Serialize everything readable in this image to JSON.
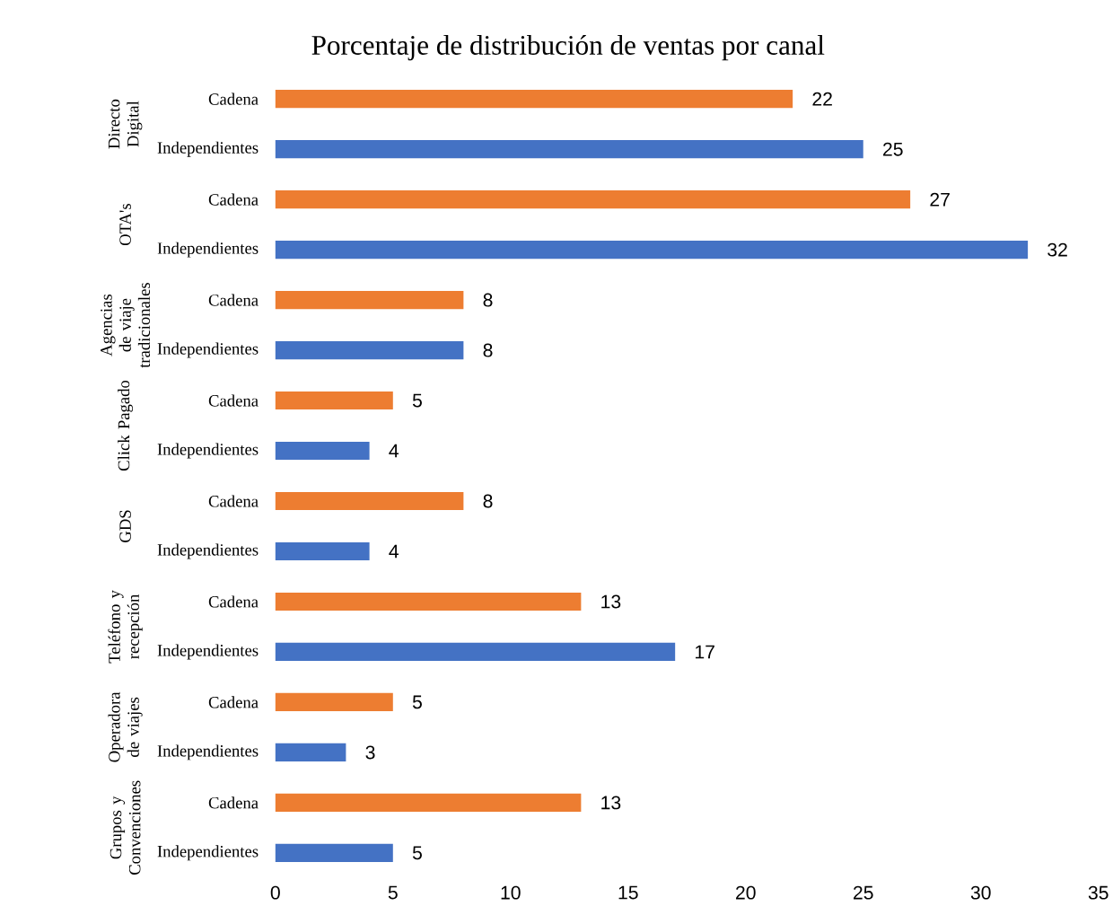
{
  "chart_data": {
    "type": "bar",
    "orientation": "horizontal",
    "title": "Porcentaje de distribución de ventas por canal",
    "categories": [
      "Cadena",
      "Independientes",
      "Cadena",
      "Independientes",
      "Cadena",
      "Independientes",
      "Cadena",
      "Independientes",
      "Cadena",
      "Independientes",
      "Cadena",
      "Independientes",
      "Cadena",
      "Independientes",
      "Cadena",
      "Independientes"
    ],
    "values": [
      22,
      25,
      27,
      32,
      8,
      8,
      5,
      4,
      8,
      4,
      13,
      17,
      5,
      3,
      13,
      5
    ],
    "colors": [
      "#ed7d31",
      "#4472c4",
      "#ed7d31",
      "#4472c4",
      "#ed7d31",
      "#4472c4",
      "#ed7d31",
      "#4472c4",
      "#ed7d31",
      "#4472c4",
      "#ed7d31",
      "#4472c4",
      "#ed7d31",
      "#4472c4",
      "#ed7d31",
      "#4472c4"
    ],
    "annotations": [
      "Directo Digital",
      "OTA's",
      "Agencias de viaje tradicionales",
      "Click Pagado",
      "GDS",
      "Teléfono y recepción",
      "Operadora de viajes",
      "Grupos y Convenciones"
    ],
    "data_labels": true,
    "xlim": [
      0,
      35
    ],
    "xticks": [
      0,
      5,
      10,
      15,
      20,
      25,
      30,
      35
    ]
  }
}
